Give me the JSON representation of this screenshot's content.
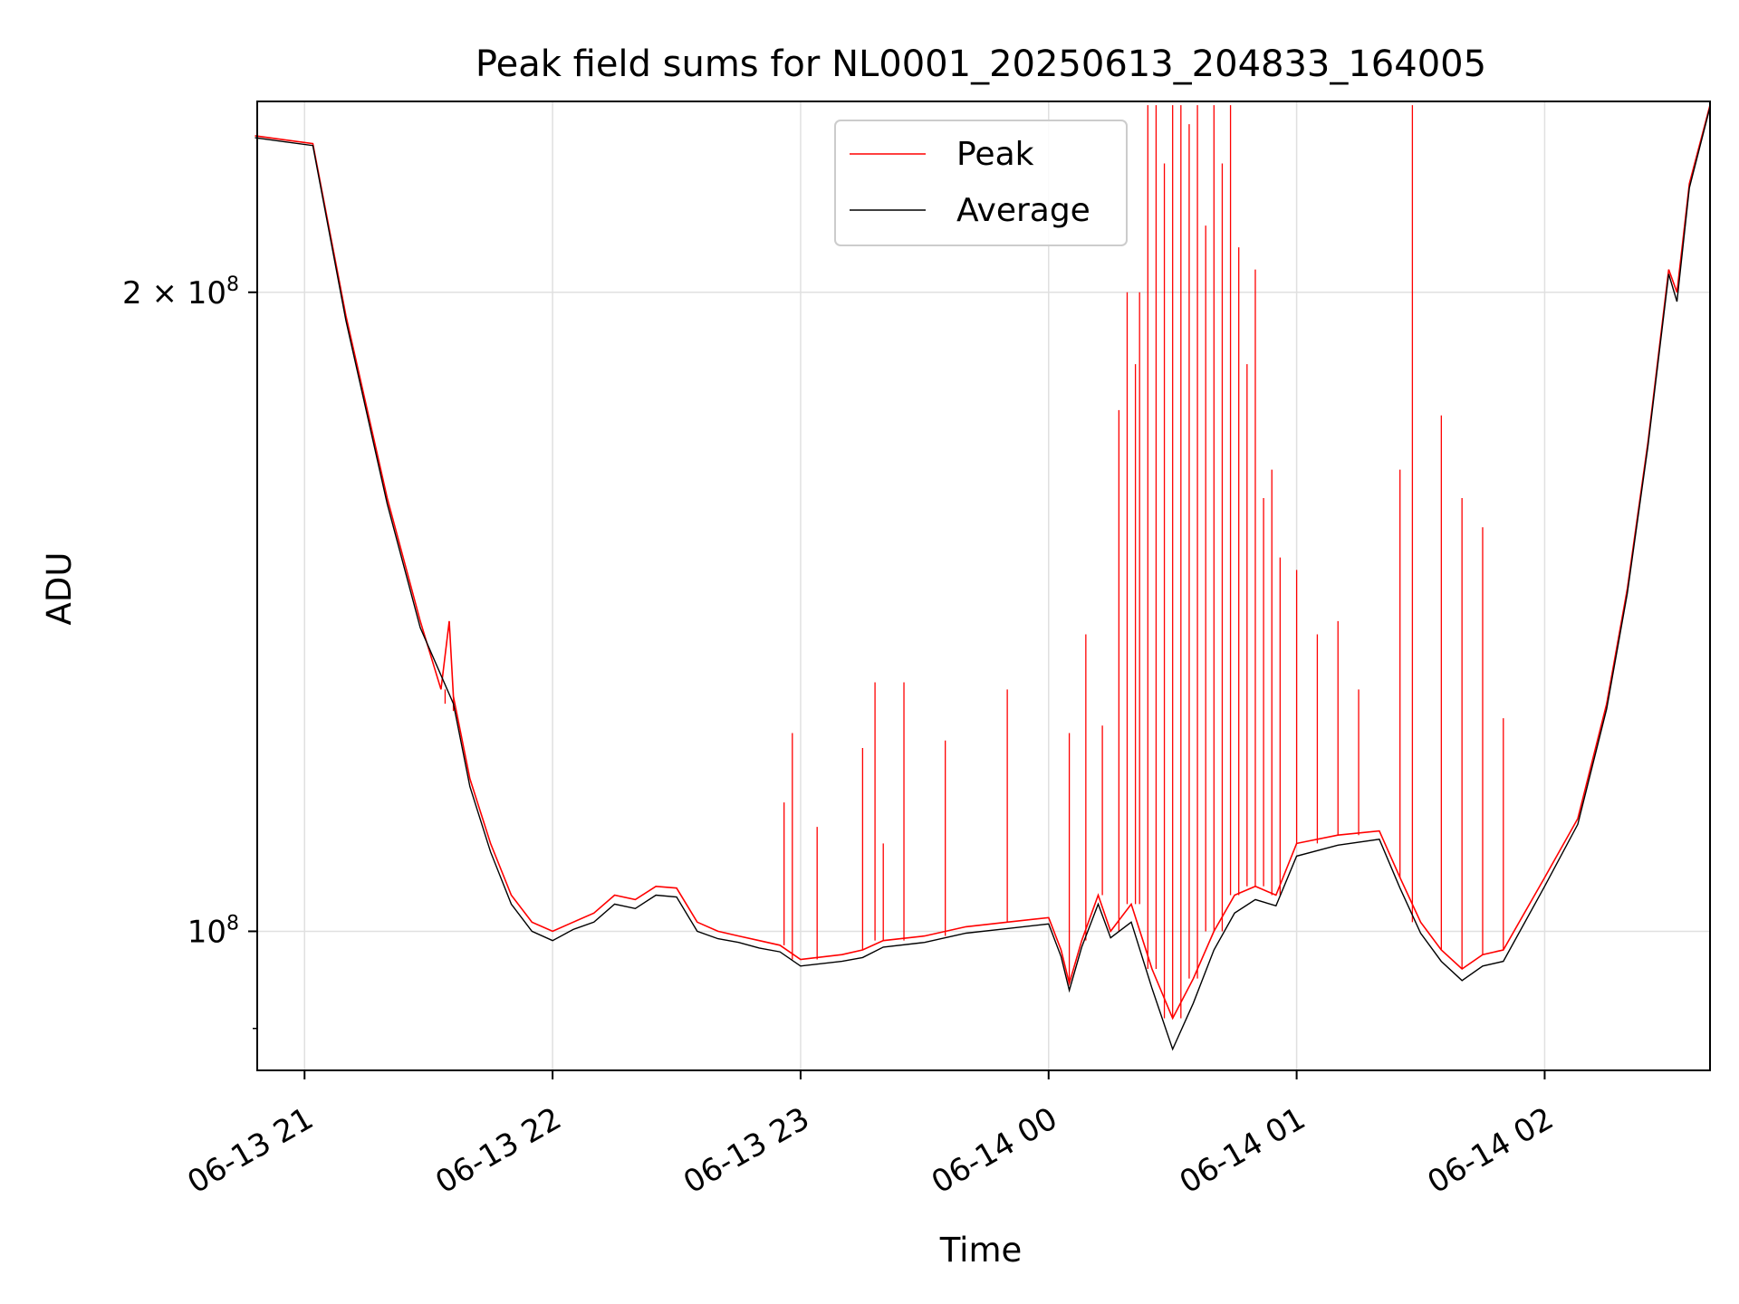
{
  "chart_data": {
    "type": "line",
    "title": "Peak field sums for NL0001_20250613_204833_164005",
    "xlabel": "Time",
    "ylabel": "ADU",
    "yscale": "log",
    "ylim": [
      86000000,
      246000000
    ],
    "xlim": [
      "2025-06-13 20:48:33",
      "2025-06-14 02:40:00"
    ],
    "grid": true,
    "legend_position": "upper center",
    "x_ticks": [
      {
        "t": "2025-06-13 21:00",
        "label": "06-13 21"
      },
      {
        "t": "2025-06-13 22:00",
        "label": "06-13 22"
      },
      {
        "t": "2025-06-13 23:00",
        "label": "06-13 23"
      },
      {
        "t": "2025-06-14 00:00",
        "label": "06-14 00"
      },
      {
        "t": "2025-06-14 01:00",
        "label": "06-14 01"
      },
      {
        "t": "2025-06-14 02:00",
        "label": "06-14 02"
      }
    ],
    "y_ticks": [
      {
        "value": 100000000,
        "base": "10",
        "exp": "8",
        "mult": ""
      },
      {
        "value": 200000000,
        "base": "2 × 10",
        "exp": "8",
        "mult": "2"
      }
    ],
    "series": [
      {
        "name": "Peak",
        "color": "#ff0000",
        "points": [
          [
            "2025-06-13 20:48",
            237000000
          ],
          [
            "2025-06-13 20:55",
            236000000
          ],
          [
            "2025-06-13 21:02",
            235000000
          ],
          [
            "2025-06-13 21:10",
            195000000
          ],
          [
            "2025-06-13 21:20",
            160000000
          ],
          [
            "2025-06-13 21:28",
            140000000
          ],
          [
            "2025-06-13 21:33",
            130000000
          ],
          [
            "2025-06-13 21:35",
            140000000
          ],
          [
            "2025-06-13 21:36",
            129000000
          ],
          [
            "2025-06-13 21:40",
            118000000
          ],
          [
            "2025-06-13 21:45",
            110000000
          ],
          [
            "2025-06-13 21:50",
            104000000
          ],
          [
            "2025-06-13 21:55",
            101000000
          ],
          [
            "2025-06-13 22:00",
            100000000
          ],
          [
            "2025-06-13 22:05",
            101000000
          ],
          [
            "2025-06-13 22:10",
            102000000
          ],
          [
            "2025-06-13 22:15",
            104000000
          ],
          [
            "2025-06-13 22:20",
            103500000
          ],
          [
            "2025-06-13 22:25",
            105000000
          ],
          [
            "2025-06-13 22:30",
            104800000
          ],
          [
            "2025-06-13 22:35",
            101000000
          ],
          [
            "2025-06-13 22:40",
            100000000
          ],
          [
            "2025-06-13 22:45",
            99500000
          ],
          [
            "2025-06-13 22:50",
            99000000
          ],
          [
            "2025-06-13 22:55",
            98500000
          ],
          [
            "2025-06-13 23:00",
            97000000
          ],
          [
            "2025-06-13 23:10",
            97500000
          ],
          [
            "2025-06-13 23:15",
            98000000
          ],
          [
            "2025-06-13 23:20",
            99000000
          ],
          [
            "2025-06-13 23:30",
            99500000
          ],
          [
            "2025-06-13 23:40",
            100500000
          ],
          [
            "2025-06-13 23:50",
            101000000
          ],
          [
            "2025-06-14 00:00",
            101500000
          ],
          [
            "2025-06-14 00:03",
            98000000
          ],
          [
            "2025-06-14 00:05",
            94500000
          ],
          [
            "2025-06-14 00:08",
            99000000
          ],
          [
            "2025-06-14 00:12",
            104000000
          ],
          [
            "2025-06-14 00:15",
            100000000
          ],
          [
            "2025-06-14 00:20",
            103000000
          ],
          [
            "2025-06-14 00:25",
            96000000
          ],
          [
            "2025-06-14 00:30",
            91000000
          ],
          [
            "2025-06-14 00:35",
            95000000
          ],
          [
            "2025-06-14 00:40",
            100000000
          ],
          [
            "2025-06-14 00:45",
            104000000
          ],
          [
            "2025-06-14 00:50",
            105000000
          ],
          [
            "2025-06-14 00:55",
            104000000
          ],
          [
            "2025-06-14 01:00",
            110000000
          ],
          [
            "2025-06-14 01:10",
            111000000
          ],
          [
            "2025-06-14 01:20",
            111500000
          ],
          [
            "2025-06-14 01:25",
            106000000
          ],
          [
            "2025-06-14 01:30",
            101000000
          ],
          [
            "2025-06-14 01:35",
            98000000
          ],
          [
            "2025-06-14 01:40",
            96000000
          ],
          [
            "2025-06-14 01:45",
            97500000
          ],
          [
            "2025-06-14 01:50",
            98000000
          ],
          [
            "2025-06-14 02:00",
            106000000
          ],
          [
            "2025-06-14 02:08",
            113000000
          ],
          [
            "2025-06-14 02:15",
            128000000
          ],
          [
            "2025-06-14 02:20",
            145000000
          ],
          [
            "2025-06-14 02:25",
            170000000
          ],
          [
            "2025-06-14 02:30",
            205000000
          ],
          [
            "2025-06-14 02:32",
            200000000
          ],
          [
            "2025-06-14 02:35",
            225000000
          ],
          [
            "2025-06-14 02:40",
            245000000
          ]
        ],
        "spikes": [
          [
            "2025-06-13 21:34",
            128000000
          ],
          [
            "2025-06-13 21:36",
            127000000
          ],
          [
            "2025-06-13 22:56",
            115000000
          ],
          [
            "2025-06-13 22:58",
            124000000
          ],
          [
            "2025-06-13 23:04",
            112000000
          ],
          [
            "2025-06-13 23:15",
            122000000
          ],
          [
            "2025-06-13 23:18",
            131000000
          ],
          [
            "2025-06-13 23:20",
            110000000
          ],
          [
            "2025-06-13 23:25",
            131000000
          ],
          [
            "2025-06-13 23:35",
            123000000
          ],
          [
            "2025-06-13 23:50",
            130000000
          ],
          [
            "2025-06-14 00:05",
            124000000
          ],
          [
            "2025-06-14 00:09",
            138000000
          ],
          [
            "2025-06-14 00:13",
            125000000
          ],
          [
            "2025-06-14 00:17",
            176000000
          ],
          [
            "2025-06-14 00:19",
            200000000
          ],
          [
            "2025-06-14 00:21",
            185000000
          ],
          [
            "2025-06-14 00:22",
            200000000
          ],
          [
            "2025-06-14 00:24",
            245000000
          ],
          [
            "2025-06-14 00:26",
            245000000
          ],
          [
            "2025-06-14 00:28",
            230000000
          ],
          [
            "2025-06-14 00:30",
            245000000
          ],
          [
            "2025-06-14 00:32",
            245000000
          ],
          [
            "2025-06-14 00:34",
            240000000
          ],
          [
            "2025-06-14 00:36",
            245000000
          ],
          [
            "2025-06-14 00:38",
            215000000
          ],
          [
            "2025-06-14 00:40",
            245000000
          ],
          [
            "2025-06-14 00:42",
            230000000
          ],
          [
            "2025-06-14 00:44",
            245000000
          ],
          [
            "2025-06-14 00:46",
            210000000
          ],
          [
            "2025-06-14 00:48",
            185000000
          ],
          [
            "2025-06-14 00:50",
            205000000
          ],
          [
            "2025-06-14 00:52",
            160000000
          ],
          [
            "2025-06-14 00:54",
            165000000
          ],
          [
            "2025-06-14 00:56",
            150000000
          ],
          [
            "2025-06-14 01:00",
            148000000
          ],
          [
            "2025-06-14 01:05",
            138000000
          ],
          [
            "2025-06-14 01:10",
            140000000
          ],
          [
            "2025-06-14 01:15",
            130000000
          ],
          [
            "2025-06-14 01:25",
            165000000
          ],
          [
            "2025-06-14 01:28",
            245000000
          ],
          [
            "2025-06-14 01:35",
            175000000
          ],
          [
            "2025-06-14 01:40",
            160000000
          ],
          [
            "2025-06-14 01:45",
            155000000
          ],
          [
            "2025-06-14 01:50",
            126000000
          ]
        ]
      },
      {
        "name": "Average",
        "color": "#000000",
        "points": [
          [
            "2025-06-13 20:48",
            236500000
          ],
          [
            "2025-06-13 20:55",
            235500000
          ],
          [
            "2025-06-13 21:02",
            234500000
          ],
          [
            "2025-06-13 21:10",
            194000000
          ],
          [
            "2025-06-13 21:20",
            159000000
          ],
          [
            "2025-06-13 21:28",
            139000000
          ],
          [
            "2025-06-13 21:36",
            128000000
          ],
          [
            "2025-06-13 21:40",
            117000000
          ],
          [
            "2025-06-13 21:45",
            109000000
          ],
          [
            "2025-06-13 21:50",
            103000000
          ],
          [
            "2025-06-13 21:55",
            100000000
          ],
          [
            "2025-06-13 22:00",
            99000000
          ],
          [
            "2025-06-13 22:05",
            100200000
          ],
          [
            "2025-06-13 22:10",
            101000000
          ],
          [
            "2025-06-13 22:15",
            103000000
          ],
          [
            "2025-06-13 22:20",
            102500000
          ],
          [
            "2025-06-13 22:25",
            104000000
          ],
          [
            "2025-06-13 22:30",
            103800000
          ],
          [
            "2025-06-13 22:35",
            100000000
          ],
          [
            "2025-06-13 22:40",
            99200000
          ],
          [
            "2025-06-13 22:45",
            98800000
          ],
          [
            "2025-06-13 22:50",
            98200000
          ],
          [
            "2025-06-13 22:55",
            97800000
          ],
          [
            "2025-06-13 23:00",
            96300000
          ],
          [
            "2025-06-13 23:10",
            96800000
          ],
          [
            "2025-06-13 23:15",
            97200000
          ],
          [
            "2025-06-13 23:20",
            98300000
          ],
          [
            "2025-06-13 23:30",
            98800000
          ],
          [
            "2025-06-13 23:40",
            99800000
          ],
          [
            "2025-06-13 23:50",
            100300000
          ],
          [
            "2025-06-14 00:00",
            100800000
          ],
          [
            "2025-06-14 00:03",
            97300000
          ],
          [
            "2025-06-14 00:05",
            93800000
          ],
          [
            "2025-06-14 00:08",
            98300000
          ],
          [
            "2025-06-14 00:12",
            103000000
          ],
          [
            "2025-06-14 00:15",
            99300000
          ],
          [
            "2025-06-14 00:20",
            101000000
          ],
          [
            "2025-06-14 00:25",
            94000000
          ],
          [
            "2025-06-14 00:30",
            88000000
          ],
          [
            "2025-06-14 00:35",
            92500000
          ],
          [
            "2025-06-14 00:40",
            98000000
          ],
          [
            "2025-06-14 00:45",
            102000000
          ],
          [
            "2025-06-14 00:50",
            103500000
          ],
          [
            "2025-06-14 00:55",
            102800000
          ],
          [
            "2025-06-14 01:00",
            108500000
          ],
          [
            "2025-06-14 01:10",
            109800000
          ],
          [
            "2025-06-14 01:20",
            110500000
          ],
          [
            "2025-06-14 01:25",
            104800000
          ],
          [
            "2025-06-14 01:30",
            99800000
          ],
          [
            "2025-06-14 01:35",
            96800000
          ],
          [
            "2025-06-14 01:40",
            94800000
          ],
          [
            "2025-06-14 01:45",
            96300000
          ],
          [
            "2025-06-14 01:50",
            96800000
          ],
          [
            "2025-06-14 02:00",
            105000000
          ],
          [
            "2025-06-14 02:08",
            112300000
          ],
          [
            "2025-06-14 02:15",
            127300000
          ],
          [
            "2025-06-14 02:20",
            144300000
          ],
          [
            "2025-06-14 02:25",
            169300000
          ],
          [
            "2025-06-14 02:30",
            204000000
          ],
          [
            "2025-06-14 02:32",
            198000000
          ],
          [
            "2025-06-14 02:35",
            224000000
          ],
          [
            "2025-06-14 02:40",
            244500000
          ]
        ]
      }
    ]
  }
}
